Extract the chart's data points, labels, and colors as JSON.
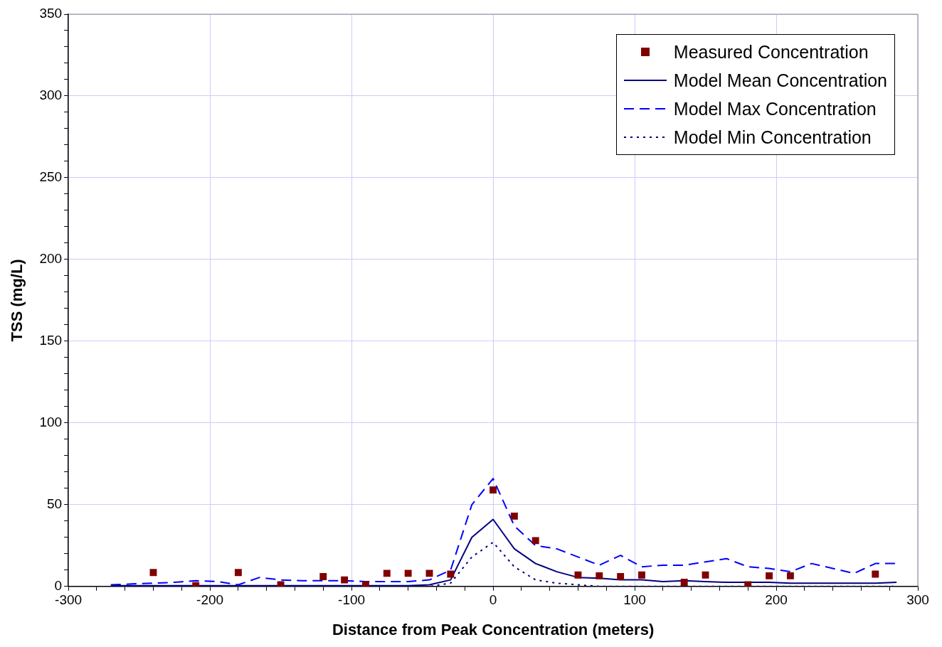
{
  "chart_data": {
    "type": "line",
    "xlabel": "Distance from Peak Concentration (meters)",
    "ylabel": "TSS (mg/L)",
    "xlim": [
      -300,
      300
    ],
    "ylim": [
      0,
      350
    ],
    "xticks": [
      -300,
      {
        "value": -280,
        "label": null
      },
      {
        "value": -260,
        "label": null
      },
      {
        "value": -240,
        "label": null
      },
      {
        "value": -220,
        "label": null
      },
      -200,
      {
        "value": -180,
        "label": null
      },
      {
        "value": -160,
        "label": null
      },
      {
        "value": -140,
        "label": null
      },
      {
        "value": -120,
        "label": null
      },
      -100,
      {
        "value": -80,
        "label": null
      },
      {
        "value": -60,
        "label": null
      },
      {
        "value": -40,
        "label": null
      },
      {
        "value": -20,
        "label": null
      },
      0,
      {
        "value": 20,
        "label": null
      },
      {
        "value": 40,
        "label": null
      },
      {
        "value": 60,
        "label": null
      },
      {
        "value": 80,
        "label": null
      },
      100,
      {
        "value": 120,
        "label": null
      },
      {
        "value": 140,
        "label": null
      },
      {
        "value": 160,
        "label": null
      },
      {
        "value": 180,
        "label": null
      },
      200,
      {
        "value": 220,
        "label": null
      },
      {
        "value": 240,
        "label": null
      },
      {
        "value": 260,
        "label": null
      },
      {
        "value": 280,
        "label": null
      },
      300
    ],
    "yticks": [
      0,
      {
        "value": 10,
        "label": null
      },
      {
        "value": 20,
        "label": null
      },
      {
        "value": 30,
        "label": null
      },
      {
        "value": 40,
        "label": null
      },
      50,
      {
        "value": 60,
        "label": null
      },
      {
        "value": 70,
        "label": null
      },
      {
        "value": 80,
        "label": null
      },
      {
        "value": 90,
        "label": null
      },
      100,
      {
        "value": 110,
        "label": null
      },
      {
        "value": 120,
        "label": null
      },
      {
        "value": 130,
        "label": null
      },
      {
        "value": 140,
        "label": null
      },
      150,
      {
        "value": 160,
        "label": null
      },
      {
        "value": 170,
        "label": null
      },
      {
        "value": 180,
        "label": null
      },
      {
        "value": 190,
        "label": null
      },
      200,
      {
        "value": 210,
        "label": null
      },
      {
        "value": 220,
        "label": null
      },
      {
        "value": 230,
        "label": null
      },
      {
        "value": 240,
        "label": null
      },
      250,
      {
        "value": 260,
        "label": null
      },
      {
        "value": 270,
        "label": null
      },
      {
        "value": 280,
        "label": null
      },
      {
        "value": 290,
        "label": null
      },
      300,
      {
        "value": 310,
        "label": null
      },
      {
        "value": 320,
        "label": null
      },
      {
        "value": 330,
        "label": null
      },
      {
        "value": 340,
        "label": null
      },
      350
    ],
    "grid": true,
    "legend": "top right",
    "series": [
      {
        "name": "Measured Concentration",
        "type": "scatter",
        "marker": "square",
        "color": "#800000",
        "x": [
          -240,
          -210,
          -180,
          -150,
          -120,
          -105,
          -90,
          -75,
          -60,
          -45,
          -30,
          0,
          15,
          30,
          60,
          75,
          90,
          105,
          135,
          150,
          180,
          195,
          210,
          270
        ],
        "values": [
          8.5,
          0.5,
          8.5,
          1,
          6,
          4,
          1,
          8,
          8,
          8,
          7.5,
          59,
          43,
          28,
          7,
          6.5,
          6,
          7,
          2.5,
          7,
          1,
          6.5,
          6.5,
          7.5
        ]
      },
      {
        "name": "Model Mean Concentration",
        "marker": "none",
        "line_style": "solid",
        "color": "#000080",
        "x": [
          -270,
          -255,
          -240,
          -225,
          -210,
          -195,
          -180,
          -165,
          -150,
          -135,
          -120,
          -105,
          -90,
          -75,
          -60,
          -45,
          -30,
          -15,
          0,
          15,
          30,
          45,
          60,
          75,
          90,
          105,
          120,
          135,
          150,
          165,
          180,
          195,
          210,
          225,
          240,
          255,
          270,
          285
        ],
        "values": [
          0.5,
          0.5,
          0.5,
          0.5,
          0.5,
          0.5,
          0.5,
          0.5,
          0.5,
          0.5,
          0.5,
          0.5,
          0.5,
          0.5,
          0.5,
          1,
          4,
          30,
          41,
          23,
          14,
          9,
          5.5,
          5,
          4,
          4,
          3,
          3.5,
          3,
          2.5,
          2.5,
          2.5,
          2,
          2,
          2,
          2,
          2,
          2.5
        ]
      },
      {
        "name": "Model Max Concentration",
        "marker": "none",
        "line_style": "dashed",
        "color": "#0000ff",
        "x": [
          -270,
          -255,
          -240,
          -225,
          -210,
          -195,
          -180,
          -165,
          -150,
          -135,
          -120,
          -105,
          -90,
          -75,
          -60,
          -45,
          -30,
          -15,
          0,
          15,
          30,
          45,
          60,
          75,
          90,
          105,
          120,
          135,
          150,
          165,
          180,
          195,
          210,
          225,
          240,
          255,
          270,
          285
        ],
        "values": [
          1,
          1.5,
          2,
          2.5,
          3.5,
          3,
          1,
          5.5,
          4,
          3.5,
          3.5,
          3.5,
          3,
          3,
          3,
          4,
          10,
          50,
          66,
          37,
          25,
          23,
          18,
          13,
          19,
          12,
          13,
          13,
          15,
          17,
          12,
          11,
          9,
          14,
          11,
          8,
          14,
          14
        ]
      },
      {
        "name": "Model Min Concentration",
        "marker": "none",
        "line_style": "dotted",
        "color": "#000080",
        "x": [
          -270,
          -255,
          -240,
          -225,
          -210,
          -195,
          -180,
          -165,
          -150,
          -135,
          -120,
          -105,
          -90,
          -75,
          -60,
          -45,
          -30,
          -15,
          0,
          15,
          30,
          45,
          60,
          75,
          90,
          105,
          120,
          135,
          150,
          165,
          180,
          195,
          210,
          225,
          240,
          255,
          270,
          285
        ],
        "values": [
          0,
          0,
          0,
          0,
          0,
          0,
          0,
          0,
          0,
          0,
          0,
          0,
          0,
          0,
          0,
          0,
          2,
          18,
          27,
          12,
          4,
          2,
          1,
          0,
          0,
          0,
          0,
          0,
          0,
          0,
          0,
          0,
          0,
          0,
          0,
          0,
          0,
          0
        ]
      }
    ]
  }
}
